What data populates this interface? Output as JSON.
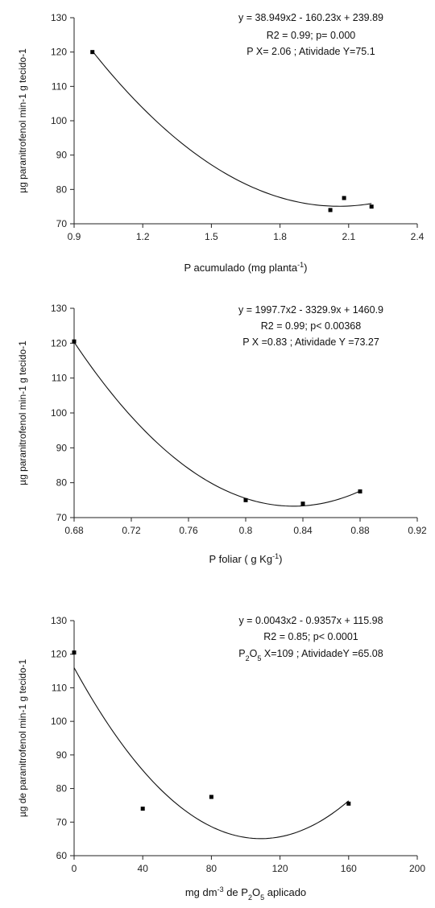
{
  "chart_data": [
    {
      "type": "scatter",
      "title": "",
      "xlabel": "P acumulado (mg planta-1)",
      "xlabel_main": "P acumulado (mg planta",
      "xlabel_sup": "-1",
      "xlabel_end": ")",
      "ylabel": "µg paranitrofenol min-1 g tecido-1",
      "xlim": [
        0.9,
        2.4
      ],
      "ylim": [
        70,
        130
      ],
      "xticks": [
        "0.9",
        "1.2",
        "1.5",
        "1.8",
        "2.1",
        "2.4"
      ],
      "yticks": [
        "70",
        "80",
        "90",
        "100",
        "110",
        "120",
        "130"
      ],
      "points": [
        {
          "x": 0.98,
          "y": 120
        },
        {
          "x": 2.02,
          "y": 74
        },
        {
          "x": 2.08,
          "y": 77.5
        },
        {
          "x": 2.2,
          "y": 75
        }
      ],
      "fit": {
        "a": 38.949,
        "b": -160.23,
        "c": 239.89,
        "x_range": [
          0.98,
          2.2
        ]
      },
      "annotations": [
        "y = 38.949x2 - 160.23x + 239.89",
        "R2 = 0.99;  p= 0.000",
        "P X= 2.06 ; Atividade Y=75.1"
      ]
    },
    {
      "type": "scatter",
      "title": "",
      "xlabel": "P foliar  ( g Kg-1)",
      "xlabel_main": "P foliar  ( g Kg",
      "xlabel_sup": "-1",
      "xlabel_end": ")",
      "ylabel": "µg paranitrofenol min-1 g tecido-1",
      "xlim": [
        0.68,
        0.92
      ],
      "ylim": [
        70,
        130
      ],
      "xticks": [
        "0.68",
        "0.72",
        "0.76",
        "0.8",
        "0.84",
        "0.88",
        "0.92"
      ],
      "yticks": [
        "70",
        "80",
        "90",
        "100",
        "110",
        "120",
        "130"
      ],
      "points": [
        {
          "x": 0.68,
          "y": 120.5
        },
        {
          "x": 0.8,
          "y": 75
        },
        {
          "x": 0.84,
          "y": 74
        },
        {
          "x": 0.88,
          "y": 77.5
        }
      ],
      "fit": {
        "a": 1997.7,
        "b": -3329.9,
        "c": 1460.9,
        "x_range": [
          0.68,
          0.88
        ]
      },
      "annotations": [
        "y = 1997.7x2 - 3329.9x + 1460.9",
        "R2 = 0.99;  p< 0.00368",
        "P X =0.83 ; Atividade Y =73.27"
      ]
    },
    {
      "type": "scatter",
      "title": "",
      "xlabel": "mg dm-3 de P2O5 aplicado",
      "xlabel_main": "mg dm",
      "xlabel_sup": "-3",
      "xlabel_mid": " de P",
      "xlabel_sub": "2",
      "xlabel_mid2": "O",
      "xlabel_sub2": "5",
      "xlabel_end": " aplicado",
      "ylabel": "µg de paranitrofenol  min-1 g tecido-1",
      "xlim": [
        0,
        200
      ],
      "ylim": [
        60,
        130
      ],
      "xticks": [
        "0",
        "40",
        "80",
        "120",
        "160",
        "200"
      ],
      "yticks": [
        "60",
        "70",
        "80",
        "90",
        "100",
        "110",
        "120",
        "130"
      ],
      "points": [
        {
          "x": 0,
          "y": 120.5
        },
        {
          "x": 40,
          "y": 74
        },
        {
          "x": 80,
          "y": 77.5
        },
        {
          "x": 160,
          "y": 75.5
        }
      ],
      "fit": {
        "a": 0.0043,
        "b": -0.9357,
        "c": 115.98,
        "x_range": [
          0,
          160
        ]
      },
      "annotations": [
        "y = 0.0043x2 - 0.9357x + 115.98",
        "R2 = 0.85; p< 0.0001",
        "P2O5 X=109 ; AtividadeY =65.08"
      ]
    }
  ]
}
